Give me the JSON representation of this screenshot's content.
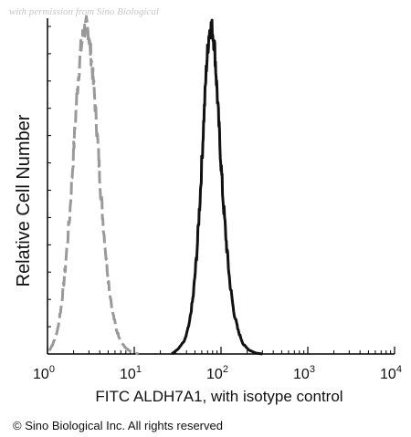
{
  "watermark": "with permission from Sino Biological",
  "copyright": "© Sino Biological Inc. All rights reserved",
  "chart_data": {
    "type": "line",
    "title": "",
    "xlabel": "FITC  ALDH7A1,  with isotype control",
    "ylabel": "Relative Cell Number",
    "xscale": "log",
    "xlim": [
      1,
      10000
    ],
    "ylim": [
      0,
      100
    ],
    "x_ticks": [
      {
        "value": 1,
        "base": "10",
        "exp": "0"
      },
      {
        "value": 10,
        "base": "10",
        "exp": "1"
      },
      {
        "value": 100,
        "base": "10",
        "exp": "2"
      },
      {
        "value": 1000,
        "base": "10",
        "exp": "3"
      },
      {
        "value": 10000,
        "base": "10",
        "exp": "4"
      }
    ],
    "grid": false,
    "legend": "none",
    "series": [
      {
        "color": "#999999",
        "style": "dashed",
        "x": [
          1.05,
          1.15,
          1.3,
          1.45,
          1.6,
          1.8,
          2.0,
          2.2,
          2.4,
          2.6,
          2.8,
          3.0,
          3.2,
          3.5,
          3.8,
          4.1,
          4.5,
          5.0,
          5.6,
          6.3,
          7.1,
          8.0,
          9.0,
          10.0,
          11.2
        ],
        "y": [
          1,
          3,
          7,
          15,
          26,
          42,
          62,
          80,
          92,
          98,
          100,
          97,
          90,
          78,
          64,
          50,
          36,
          23,
          13,
          7,
          3.5,
          1.8,
          0.8,
          0.3,
          0
        ]
      },
      {
        "color": "#111111",
        "style": "solid",
        "x": [
          27,
          32,
          38,
          43,
          48,
          53,
          58,
          63,
          68,
          73,
          78,
          84,
          90,
          97,
          105,
          115,
          126,
          140,
          158,
          180,
          210,
          250,
          300
        ],
        "y": [
          0,
          1.5,
          4,
          9,
          18,
          32,
          50,
          70,
          88,
          98,
          100,
          94,
          80,
          64,
          48,
          34,
          22,
          13,
          7,
          3,
          1.2,
          0.3,
          0
        ]
      }
    ]
  }
}
